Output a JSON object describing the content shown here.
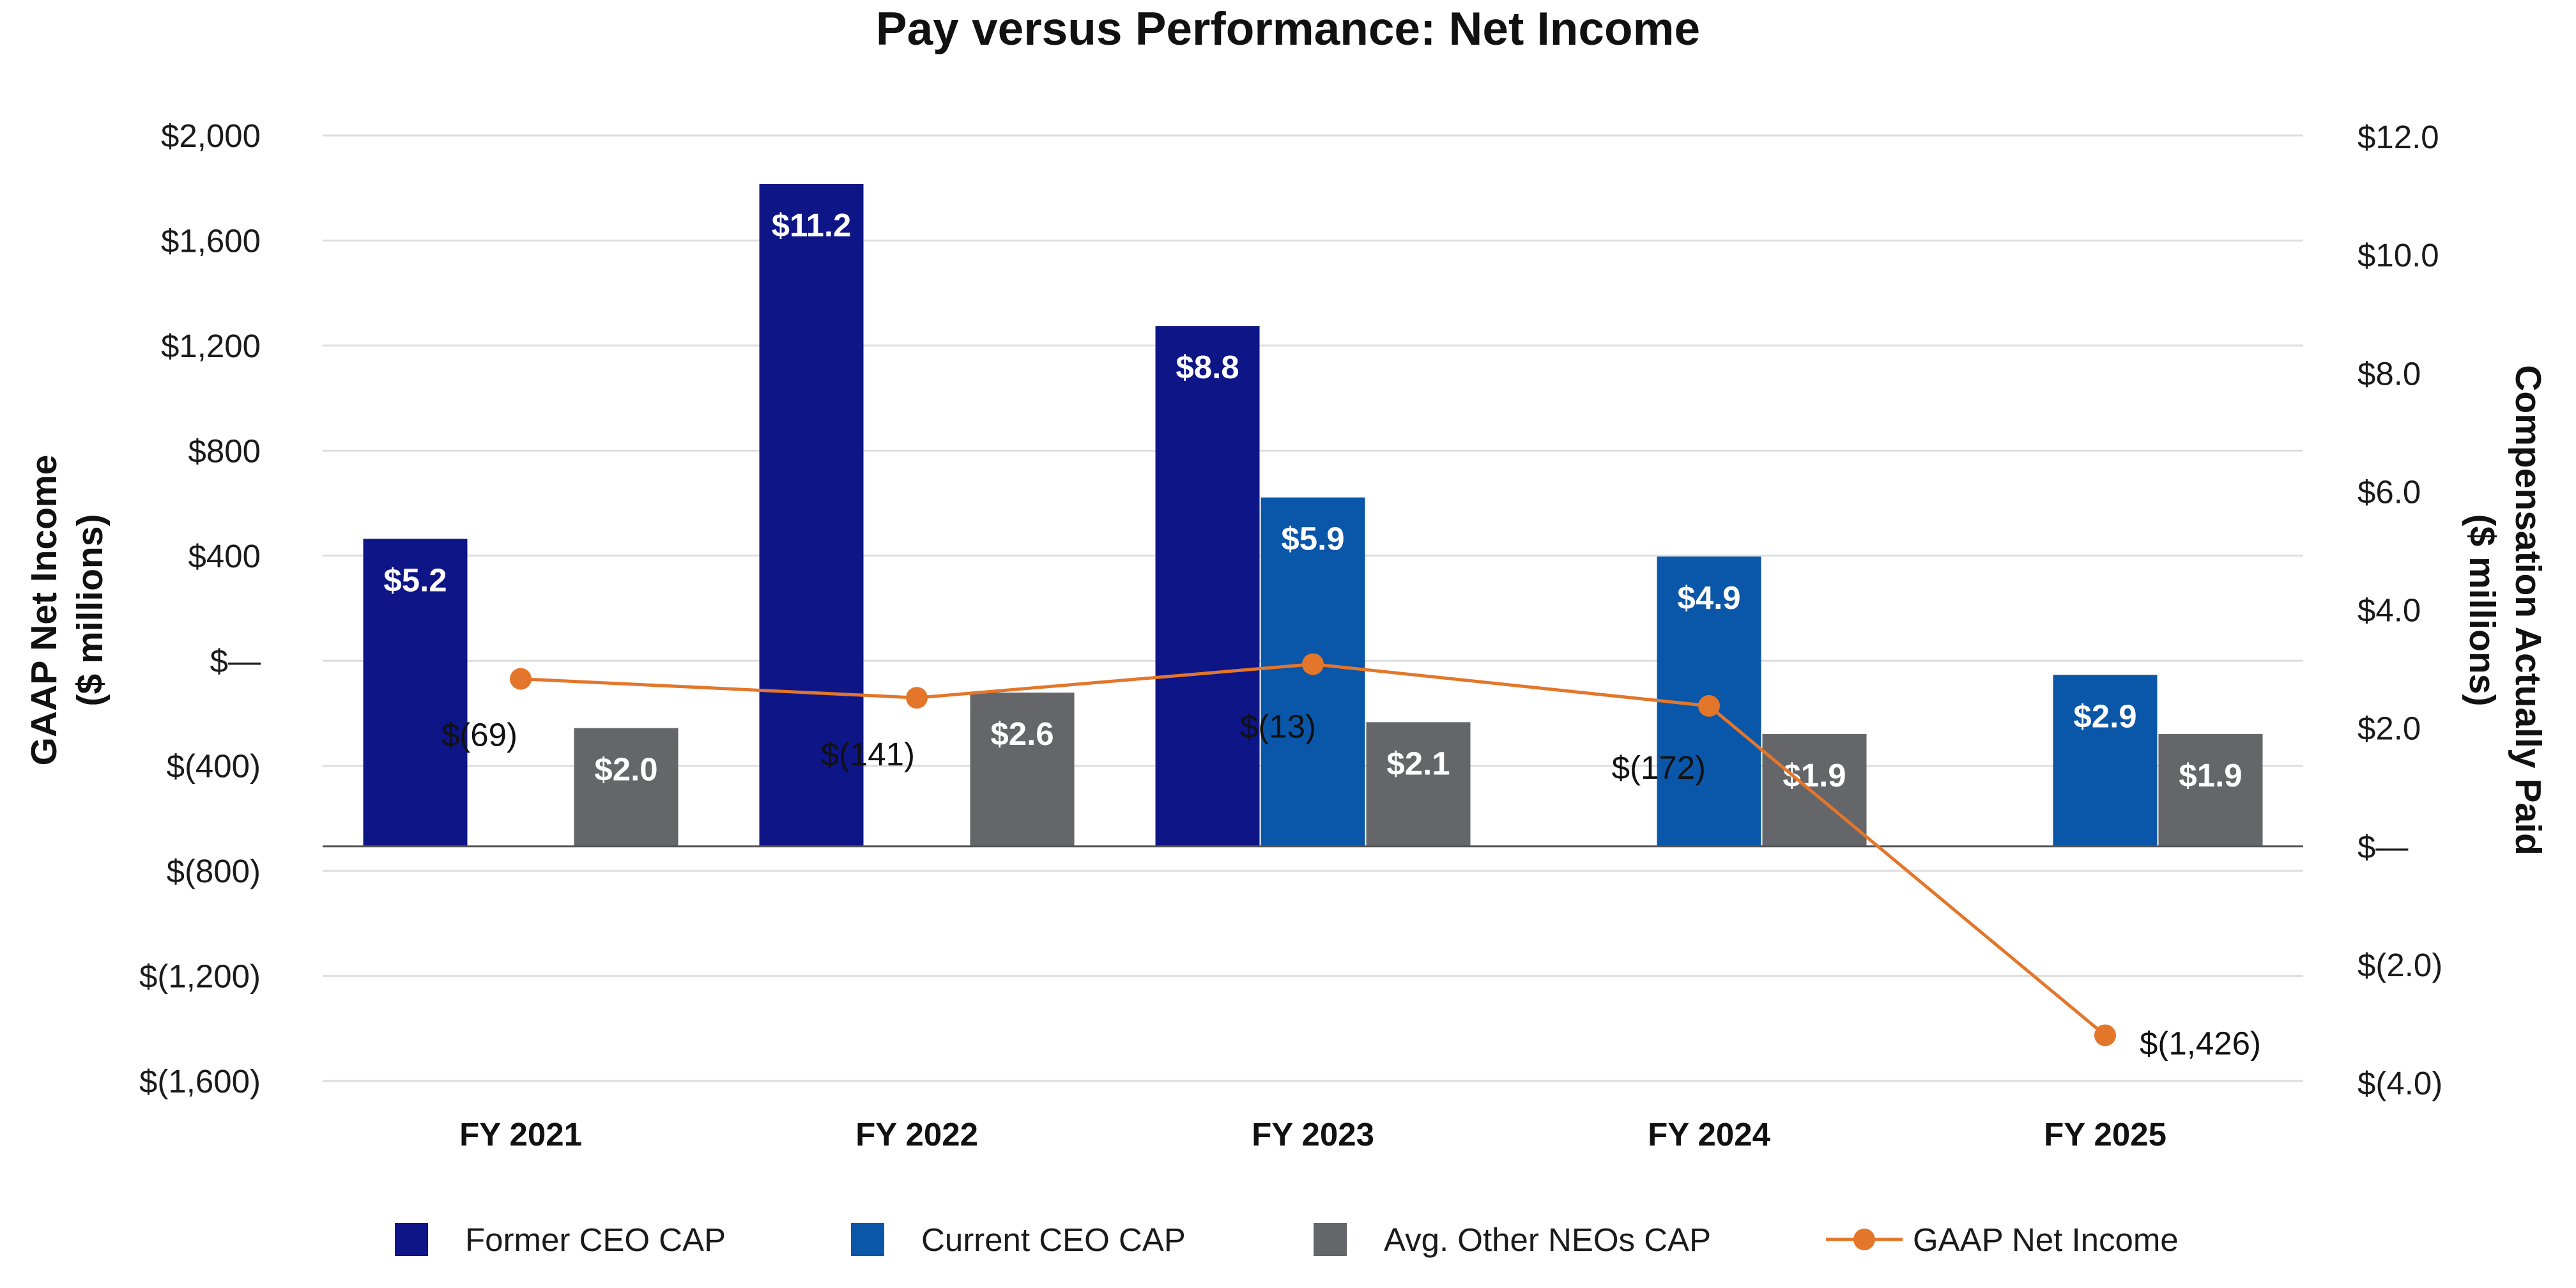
{
  "chart_data": {
    "type": "bar",
    "title": "Pay versus Performance: Net Income",
    "categories": [
      "FY 2021",
      "FY 2022",
      "FY 2023",
      "FY 2024",
      "FY 2025"
    ],
    "y_left": {
      "label_line1": "GAAP Net Income",
      "label_line2": "($ millions)",
      "range": [
        -1600,
        2000
      ],
      "ticks": [
        2000,
        1600,
        1200,
        800,
        400,
        0,
        -400,
        -800,
        -1200,
        -1600
      ],
      "tick_labels": [
        "$2,000",
        "$1,600",
        "$1,200",
        "$800",
        "$400",
        "$—",
        "$(400)",
        "$(800)",
        "$(1,200)",
        "$(1,600)"
      ]
    },
    "y_right": {
      "label_line1": "Compensation Actually Paid",
      "label_line2": "($ millions)",
      "range": [
        -4,
        12
      ],
      "ticks": [
        12,
        10,
        8,
        6,
        4,
        2,
        0,
        -2,
        -4
      ],
      "tick_labels": [
        "$12.0",
        "$10.0",
        "$8.0",
        "$6.0",
        "$4.0",
        "$2.0",
        "$—",
        "$(2.0)",
        "$(4.0)"
      ]
    },
    "series": [
      {
        "name": "Former CEO CAP",
        "axis": "right",
        "kind": "bar",
        "color": "#0e1587",
        "values": [
          5.2,
          11.2,
          8.8,
          null,
          null
        ],
        "labels": [
          "$5.2",
          "$11.2",
          "$8.8",
          "",
          ""
        ]
      },
      {
        "name": "Current CEO CAP",
        "axis": "right",
        "kind": "bar",
        "color": "#0a56a8",
        "values": [
          null,
          null,
          5.9,
          4.9,
          2.9
        ],
        "labels": [
          "",
          "",
          "$5.9",
          "$4.9",
          "$2.9"
        ]
      },
      {
        "name": "Avg. Other NEOs CAP",
        "axis": "right",
        "kind": "bar",
        "color": "#64666a",
        "values": [
          2.0,
          2.6,
          2.1,
          1.9,
          1.9
        ],
        "labels": [
          "$2.0",
          "$2.6",
          "$2.1",
          "$1.9",
          "$1.9"
        ]
      },
      {
        "name": "GAAP Net Income",
        "axis": "left",
        "kind": "line",
        "color": "#e3762a",
        "values": [
          -69,
          -141,
          -13,
          -172,
          -1426
        ],
        "labels": [
          "$(69)",
          "$(141)",
          "$(13)",
          "$(172)",
          "$(1,426)"
        ]
      }
    ],
    "legend_position": "bottom",
    "grid": true
  }
}
